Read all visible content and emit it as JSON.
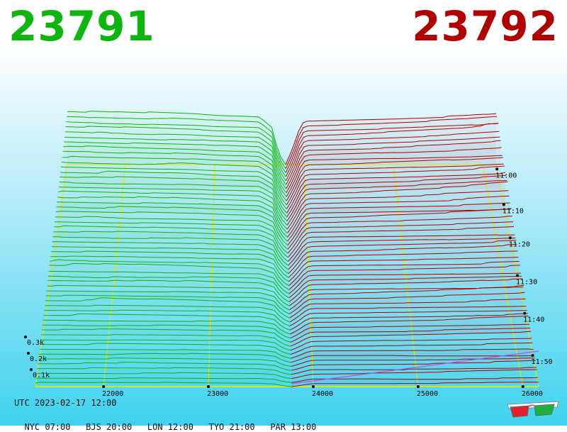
{
  "header": {
    "bid_price": "23791",
    "ask_price": "23792",
    "bid_color": "#0db50d",
    "ask_color": "#b00000"
  },
  "footer": {
    "utc": "UTC 2023-02-17 12:00",
    "cities": [
      {
        "label": "NYC 07:00"
      },
      {
        "label": "BJS 20:00"
      },
      {
        "label": "LON 12:00"
      },
      {
        "label": "TYO 21:00"
      },
      {
        "label": "PAR 13:00"
      }
    ]
  },
  "icons": {
    "glasses": "3d-glasses-icon"
  },
  "chart_data": {
    "type": "3d-depth-waterfall",
    "title": "",
    "x_axis": {
      "label": "",
      "ticks": [
        22000,
        23000,
        24000,
        25000,
        26000
      ],
      "tick_labels": [
        "22000",
        "23000",
        "24000",
        "25000",
        "26000"
      ],
      "range": [
        21350,
        26150
      ]
    },
    "z_axis": {
      "label": "",
      "ticks": [
        100,
        200,
        300
      ],
      "tick_labels": [
        "0.1k",
        "0.2k",
        "0.3k"
      ]
    },
    "time_axis": {
      "label": "",
      "tick_labels": [
        "11:00",
        "11:10",
        "11:20",
        "11:30",
        "11:40",
        "11:50"
      ]
    },
    "mid_price": 23791.5,
    "series": [
      {
        "name": "bids",
        "color": "#0db50d",
        "side": "left"
      },
      {
        "name": "asks",
        "color": "#b00000",
        "side": "right"
      }
    ],
    "depth_profile": {
      "bids": [
        [
          21350,
          880
        ],
        [
          22000,
          850
        ],
        [
          22800,
          820
        ],
        [
          23000,
          800
        ],
        [
          23500,
          780
        ],
        [
          23650,
          600
        ],
        [
          23700,
          250
        ],
        [
          23760,
          60
        ],
        [
          23791,
          0
        ]
      ],
      "asks": [
        [
          23792,
          0
        ],
        [
          23820,
          80
        ],
        [
          23880,
          300
        ],
        [
          23950,
          600
        ],
        [
          24000,
          720
        ],
        [
          25000,
          760
        ],
        [
          25800,
          800
        ],
        [
          26150,
          830
        ]
      ]
    },
    "snapshots": 56,
    "grid": true
  }
}
